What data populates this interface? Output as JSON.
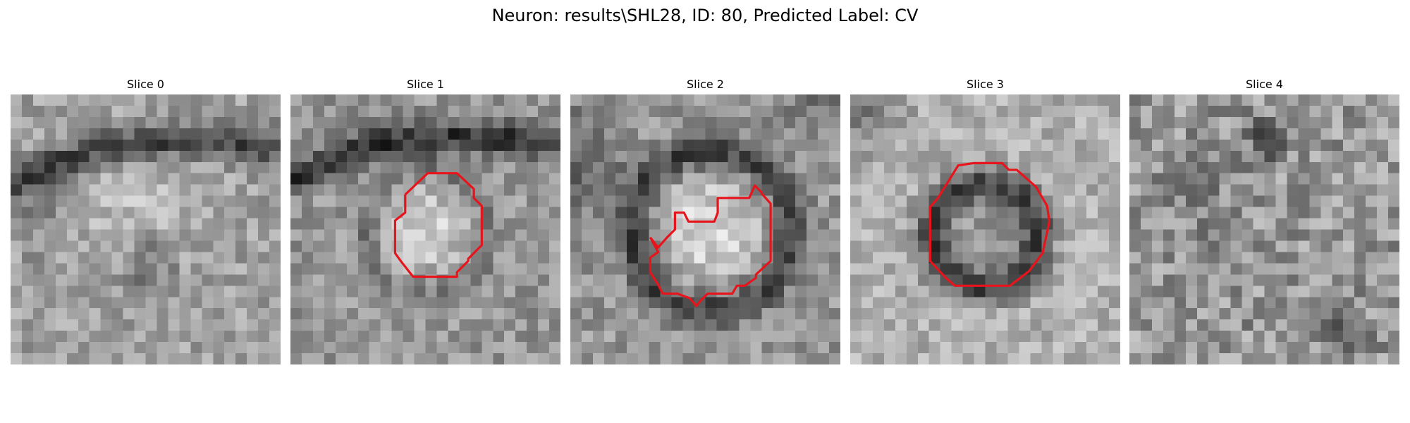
{
  "title": "Neuron: results\\SHL28, ID: 80, Predicted Label: CV",
  "colors": {
    "contour": "#e8141c",
    "background": "#ffffff"
  },
  "panels": [
    {
      "title": "Slice 0",
      "has_contour": false
    },
    {
      "title": "Slice 1",
      "has_contour": true
    },
    {
      "title": "Slice 2",
      "has_contour": true
    },
    {
      "title": "Slice 3",
      "has_contour": true
    },
    {
      "title": "Slice 4",
      "has_contour": false
    }
  ]
}
